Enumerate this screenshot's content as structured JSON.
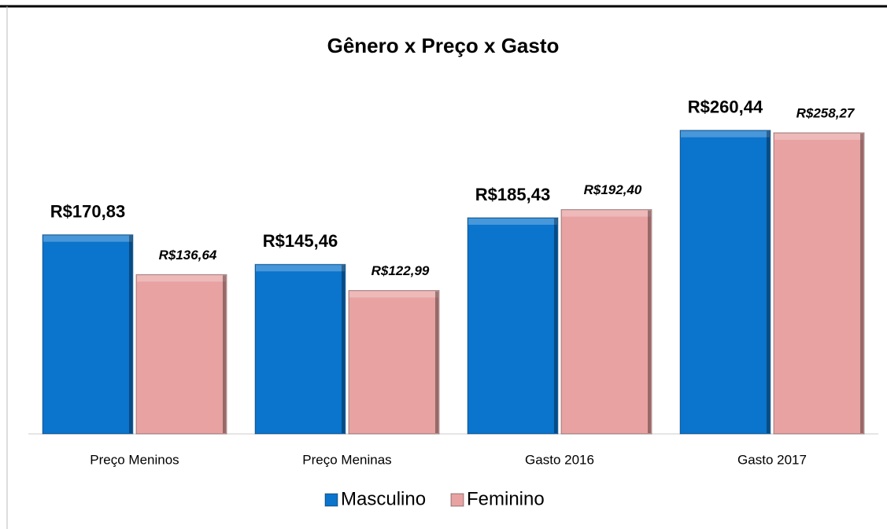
{
  "chart_data": {
    "type": "bar",
    "title": "Gênero x Preço x Gasto",
    "categories": [
      "Preço Meninos",
      "Preço Meninas",
      "Gasto 2016",
      "Gasto 2017"
    ],
    "series": [
      {
        "name": "Masculino",
        "color": "#0b74cc",
        "values": [
          170.83,
          145.46,
          185.43,
          260.44
        ],
        "value_labels": [
          "R$170,83",
          "R$145,46",
          "R$185,43",
          "R$260,44"
        ]
      },
      {
        "name": "Feminino",
        "color": "#e8a2a2",
        "values": [
          136.64,
          122.99,
          192.4,
          258.27
        ],
        "value_labels": [
          "R$136,64",
          "R$122,99",
          "R$192,40",
          "R$258,27"
        ]
      }
    ],
    "ylim": [
      0,
      300
    ],
    "legend": "bottom"
  }
}
